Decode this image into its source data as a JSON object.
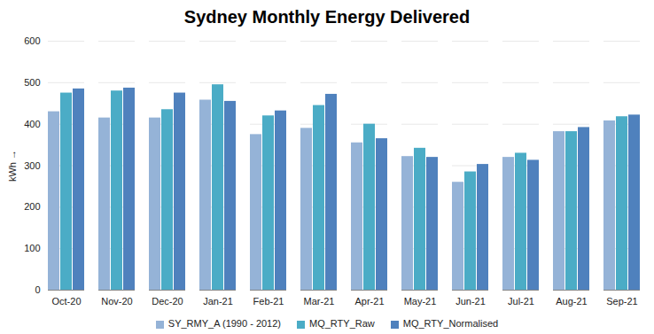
{
  "chart_data": {
    "type": "bar",
    "title": "Sydney Monthly Energy Delivered",
    "y_label": "kWh",
    "categories": [
      "Oct-20",
      "Nov-20",
      "Dec-20",
      "Jan-21",
      "Feb-21",
      "Mar-21",
      "Apr-21",
      "May-21",
      "Jun-21",
      "Jul-21",
      "Aug-21",
      "Sep-21"
    ],
    "series": [
      {
        "name": "SY_RMY_A (1990 - 2012)",
        "color": "#95b3d7",
        "values": [
          430,
          415,
          415,
          458,
          375,
          390,
          355,
          322,
          260,
          320,
          382,
          408
        ]
      },
      {
        "name": "MQ_RTY_Raw",
        "color": "#4bacc6",
        "values": [
          475,
          480,
          435,
          495,
          420,
          445,
          400,
          342,
          285,
          330,
          382,
          418
        ]
      },
      {
        "name": "MQ_RTY_Normalised",
        "color": "#4f81bd",
        "values": [
          485,
          487,
          475,
          455,
          432,
          472,
          365,
          320,
          303,
          313,
          392,
          422
        ]
      }
    ],
    "ylim": [
      0,
      600
    ],
    "yticks": [
      0,
      100,
      200,
      300,
      400,
      500,
      600
    ],
    "grid": true,
    "legend": "bottom"
  }
}
